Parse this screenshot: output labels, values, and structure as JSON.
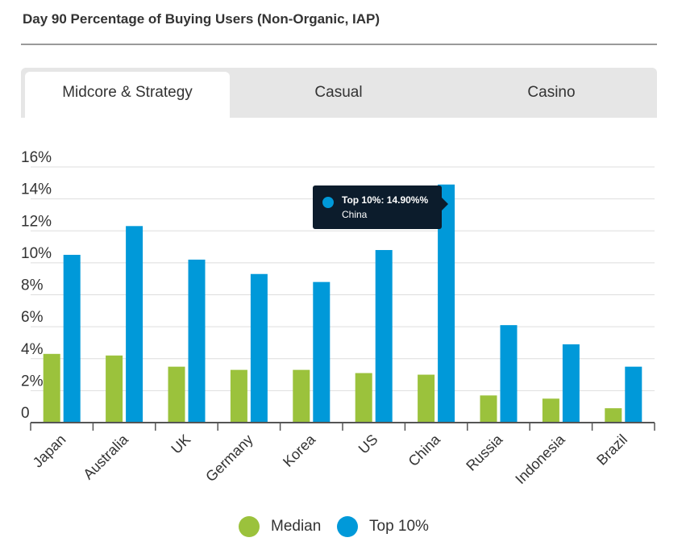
{
  "title": "Day 90 Percentage of Buying Users (Non-Organic, IAP)",
  "tabs": [
    {
      "label": "Midcore & Strategy",
      "active": true
    },
    {
      "label": "Casual",
      "active": false
    },
    {
      "label": "Casino",
      "active": false
    }
  ],
  "tooltip": {
    "line1": "Top 10%: 14.90%%",
    "line2": "China",
    "color": "#0099d9"
  },
  "chart_data": {
    "type": "bar",
    "categories": [
      "Japan",
      "Australia",
      "UK",
      "Germany",
      "Korea",
      "US",
      "China",
      "Russia",
      "Indonesia",
      "Brazil"
    ],
    "series": [
      {
        "name": "Median",
        "color": "#9bc23c",
        "values": [
          4.3,
          4.2,
          3.5,
          3.3,
          3.3,
          3.1,
          3.0,
          1.7,
          1.5,
          0.9
        ]
      },
      {
        "name": "Top 10%",
        "color": "#0099d9",
        "values": [
          10.5,
          12.3,
          10.2,
          9.3,
          8.8,
          10.8,
          14.9,
          6.1,
          4.9,
          3.5
        ]
      }
    ],
    "ylim": [
      0,
      16
    ],
    "y_ticks": [
      "0",
      "2%",
      "4%",
      "6%",
      "8%",
      "10%",
      "12%",
      "14%",
      "16%"
    ],
    "grid": true,
    "legend_position": "bottom"
  }
}
